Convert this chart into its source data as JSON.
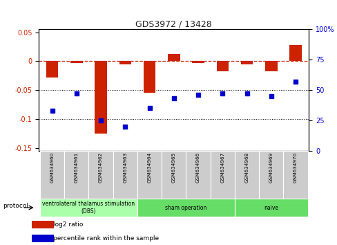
{
  "title": "GDS3972 / 13428",
  "samples": [
    "GSM634960",
    "GSM634961",
    "GSM634962",
    "GSM634963",
    "GSM634964",
    "GSM634965",
    "GSM634966",
    "GSM634967",
    "GSM634968",
    "GSM634969",
    "GSM634970"
  ],
  "log2_ratio": [
    -0.028,
    -0.003,
    -0.125,
    -0.005,
    -0.055,
    0.012,
    -0.003,
    -0.018,
    -0.005,
    -0.018,
    0.028
  ],
  "percentile_rank": [
    33,
    47,
    25,
    20,
    35,
    43,
    46,
    47,
    47,
    45,
    57
  ],
  "ylim_left": [
    -0.155,
    0.055
  ],
  "ylim_right": [
    0,
    100
  ],
  "yticks_left": [
    0.05,
    0.0,
    -0.05,
    -0.1,
    -0.15
  ],
  "yticks_right": [
    100,
    75,
    50,
    25,
    0
  ],
  "left_tick_labels": [
    "0.05",
    "0",
    "-0.05",
    "-0.1",
    "-0.15"
  ],
  "right_tick_labels": [
    "100%",
    "75",
    "50",
    "25",
    "0"
  ],
  "bar_color": "#cc2200",
  "dot_color": "#0000cc",
  "dashed_line_color": "#cc2200",
  "dotted_line_color": "#000000",
  "group_spans": [
    {
      "start": 0,
      "end": 3,
      "color": "#aaffaa",
      "label": "ventrolateral thalamus stimulation\n(DBS)"
    },
    {
      "start": 4,
      "end": 7,
      "color": "#66dd66",
      "label": "sham operation"
    },
    {
      "start": 8,
      "end": 10,
      "color": "#66dd66",
      "label": "naive"
    }
  ],
  "protocol_label": "protocol",
  "legend_items": [
    {
      "label": "log2 ratio",
      "color": "#cc2200"
    },
    {
      "label": "percentile rank within the sample",
      "color": "#0000cc"
    }
  ],
  "bar_width": 0.5,
  "dot_size": 14
}
